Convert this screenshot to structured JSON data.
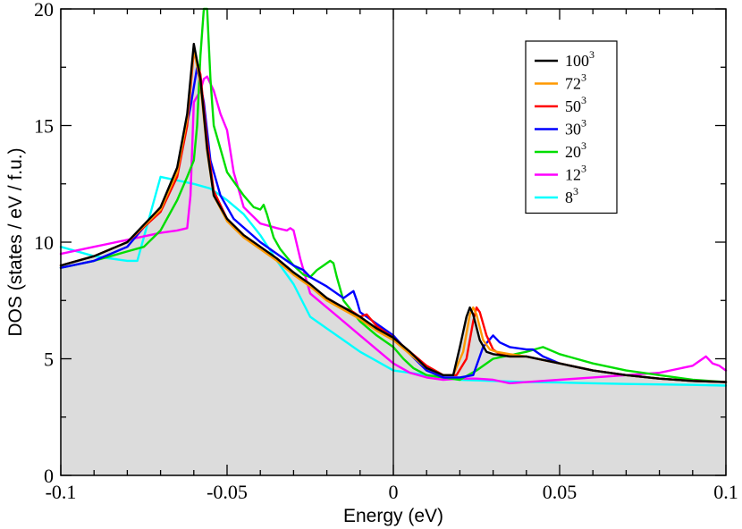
{
  "chart_data": {
    "type": "line",
    "title": "",
    "xlabel": "Energy (eV)",
    "ylabel": "DOS (states / eV / f.u.)",
    "xlim": [
      -0.1,
      0.1
    ],
    "ylim": [
      0,
      20
    ],
    "x_ticks": [
      "-0.1",
      "-0.05",
      "0",
      "0.05",
      "0.1"
    ],
    "y_ticks": [
      "0",
      "5",
      "10",
      "15",
      "20"
    ],
    "fermi_line_x": 0,
    "legend_position": "top-right",
    "shaded_reference_series": "100^3",
    "series": [
      {
        "name": "100^3",
        "label_base": "100",
        "label_exp": "3",
        "color": "#000000",
        "x": [
          -0.1,
          -0.09,
          -0.08,
          -0.07,
          -0.065,
          -0.062,
          -0.06,
          -0.058,
          -0.056,
          -0.054,
          -0.05,
          -0.045,
          -0.04,
          -0.035,
          -0.03,
          -0.025,
          -0.02,
          -0.015,
          -0.01,
          -0.005,
          0,
          0.005,
          0.01,
          0.015,
          0.018,
          0.02,
          0.022,
          0.023,
          0.024,
          0.026,
          0.028,
          0.03,
          0.035,
          0.04,
          0.05,
          0.06,
          0.07,
          0.08,
          0.09,
          0.1
        ],
        "y": [
          9,
          9.4,
          10,
          11.5,
          13.2,
          15.5,
          18.5,
          17,
          14,
          12,
          11,
          10.3,
          9.8,
          9.3,
          8.7,
          8.2,
          7.6,
          7.2,
          6.8,
          6.3,
          5.9,
          5.3,
          4.6,
          4.3,
          4.3,
          5.5,
          6.8,
          7.2,
          6.9,
          5.8,
          5.3,
          5.2,
          5.1,
          5.1,
          4.8,
          4.5,
          4.3,
          4.15,
          4.05,
          4
        ]
      },
      {
        "name": "72^3",
        "label_base": "72",
        "label_exp": "3",
        "color": "#ff9900",
        "x": [
          -0.1,
          -0.09,
          -0.08,
          -0.07,
          -0.065,
          -0.062,
          -0.06,
          -0.058,
          -0.056,
          -0.054,
          -0.05,
          -0.045,
          -0.04,
          -0.035,
          -0.03,
          -0.025,
          -0.02,
          -0.015,
          -0.01,
          -0.005,
          0,
          0.005,
          0.01,
          0.015,
          0.018,
          0.021,
          0.023,
          0.024,
          0.025,
          0.027,
          0.029,
          0.031,
          0.035,
          0.04,
          0.05,
          0.06,
          0.07,
          0.08,
          0.09,
          0.1
        ],
        "y": [
          9,
          9.4,
          10,
          11.4,
          13,
          15.3,
          18.3,
          16.8,
          13.9,
          12,
          10.9,
          10.2,
          9.7,
          9.2,
          8.6,
          8.1,
          7.5,
          7.1,
          6.7,
          6.2,
          5.8,
          5.2,
          4.6,
          4.3,
          4.3,
          5.3,
          6.9,
          7.2,
          6.9,
          5.8,
          5.4,
          5.3,
          5.2,
          5.1,
          4.8,
          4.5,
          4.3,
          4.15,
          4.05,
          4
        ]
      },
      {
        "name": "50^3",
        "label_base": "50",
        "label_exp": "3",
        "color": "#ff0000",
        "x": [
          -0.1,
          -0.09,
          -0.08,
          -0.07,
          -0.065,
          -0.062,
          -0.06,
          -0.058,
          -0.056,
          -0.054,
          -0.05,
          -0.045,
          -0.04,
          -0.035,
          -0.03,
          -0.025,
          -0.02,
          -0.015,
          -0.012,
          -0.01,
          -0.008,
          -0.005,
          0,
          0.005,
          0.01,
          0.015,
          0.019,
          0.022,
          0.024,
          0.025,
          0.026,
          0.028,
          0.03,
          0.032,
          0.035,
          0.04,
          0.05,
          0.06,
          0.07,
          0.08,
          0.09,
          0.1
        ],
        "y": [
          9,
          9.4,
          10,
          11.3,
          12.8,
          15,
          18.2,
          17.2,
          14.3,
          12.2,
          11,
          10.3,
          9.8,
          9.3,
          8.7,
          8.1,
          7.6,
          7.2,
          7,
          6.8,
          6.9,
          6.4,
          5.9,
          5.3,
          4.7,
          4.3,
          4.3,
          5,
          6.6,
          7.2,
          7,
          6,
          5.4,
          5.2,
          5.1,
          5.1,
          4.8,
          4.5,
          4.3,
          4.15,
          4.05,
          4
        ]
      },
      {
        "name": "30^3",
        "label_base": "30",
        "label_exp": "3",
        "color": "#0000ff",
        "x": [
          -0.1,
          -0.09,
          -0.08,
          -0.07,
          -0.065,
          -0.061,
          -0.059,
          -0.057,
          -0.055,
          -0.052,
          -0.048,
          -0.044,
          -0.04,
          -0.035,
          -0.03,
          -0.027,
          -0.025,
          -0.02,
          -0.015,
          -0.013,
          -0.012,
          -0.011,
          -0.01,
          -0.005,
          0,
          0.005,
          0.01,
          0.015,
          0.02,
          0.024,
          0.027,
          0.03,
          0.032,
          0.035,
          0.04,
          0.042,
          0.045,
          0.05,
          0.06,
          0.07,
          0.08,
          0.09,
          0.1
        ],
        "y": [
          8.9,
          9.2,
          9.8,
          11.5,
          13,
          15.8,
          17.5,
          16,
          13.5,
          12,
          11,
          10.5,
          10,
          9.5,
          9,
          8.8,
          8.5,
          8.1,
          7.6,
          7.8,
          7.9,
          7.5,
          7,
          6.5,
          6,
          5.2,
          4.5,
          4.2,
          4.2,
          4.3,
          5.5,
          6,
          5.7,
          5.5,
          5.4,
          5.4,
          5.1,
          4.8,
          4.5,
          4.3,
          4.15,
          4.05,
          4
        ]
      },
      {
        "name": "20^3",
        "label_base": "20",
        "label_exp": "3",
        "color": "#00dd00",
        "x": [
          -0.1,
          -0.09,
          -0.08,
          -0.075,
          -0.07,
          -0.065,
          -0.062,
          -0.06,
          -0.059,
          -0.058,
          -0.057,
          -0.056,
          -0.055,
          -0.054,
          -0.052,
          -0.05,
          -0.045,
          -0.042,
          -0.04,
          -0.039,
          -0.038,
          -0.036,
          -0.034,
          -0.03,
          -0.027,
          -0.025,
          -0.023,
          -0.021,
          -0.019,
          -0.018,
          -0.017,
          -0.015,
          -0.01,
          -0.005,
          0,
          0.003,
          0.006,
          0.01,
          0.02,
          0.025,
          0.03,
          0.04,
          0.045,
          0.05,
          0.06,
          0.07,
          0.08,
          0.09,
          0.1
        ],
        "y": [
          8.9,
          9.2,
          9.6,
          9.8,
          10.5,
          11.8,
          12.8,
          13.5,
          15,
          18,
          20,
          20,
          17,
          15,
          14,
          13,
          12,
          11.5,
          11.4,
          11.6,
          11.2,
          10.2,
          9.7,
          9,
          8.6,
          8.5,
          8.8,
          9,
          9.2,
          9.1,
          8.5,
          7.5,
          6.6,
          6,
          5.5,
          5,
          4.6,
          4.3,
          4.1,
          4.5,
          5,
          5.3,
          5.5,
          5.2,
          4.8,
          4.5,
          4.3,
          4.1,
          4
        ]
      },
      {
        "name": "12^3",
        "label_base": "12",
        "label_exp": "3",
        "color": "#ff00ff",
        "x": [
          -0.1,
          -0.09,
          -0.08,
          -0.07,
          -0.065,
          -0.062,
          -0.061,
          -0.06,
          -0.058,
          -0.057,
          -0.056,
          -0.054,
          -0.052,
          -0.05,
          -0.048,
          -0.045,
          -0.04,
          -0.035,
          -0.032,
          -0.031,
          -0.03,
          -0.028,
          -0.025,
          -0.02,
          -0.015,
          -0.01,
          -0.005,
          0,
          0.005,
          0.01,
          0.015,
          0.02,
          0.025,
          0.03,
          0.035,
          0.04,
          0.05,
          0.06,
          0.07,
          0.08,
          0.09,
          0.092,
          0.093,
          0.094,
          0.096,
          0.098,
          0.1
        ],
        "y": [
          9.5,
          9.8,
          10.1,
          10.4,
          10.5,
          10.6,
          12,
          16,
          16.5,
          17,
          17.1,
          16.5,
          15.5,
          14.8,
          13,
          11.5,
          10.8,
          10.6,
          10.5,
          10.6,
          10.5,
          9.3,
          7.8,
          7.2,
          6.6,
          6,
          5.4,
          4.8,
          4.4,
          4.2,
          4.1,
          4.15,
          4.15,
          4.1,
          3.95,
          4.0,
          4.1,
          4.2,
          4.3,
          4.4,
          4.7,
          4.9,
          5.0,
          5.1,
          4.8,
          4.7,
          4.5
        ]
      },
      {
        "name": "8^3",
        "label_base": "8",
        "label_exp": "3",
        "color": "#00ffff",
        "x": [
          -0.1,
          -0.09,
          -0.08,
          -0.077,
          -0.07,
          -0.06,
          -0.055,
          -0.05,
          -0.045,
          -0.04,
          -0.035,
          -0.03,
          -0.025,
          -0.02,
          -0.015,
          -0.01,
          -0.005,
          0,
          0.005,
          0.01,
          0.02,
          0.03,
          0.04,
          0.05,
          0.06,
          0.07,
          0.08,
          0.09,
          0.1
        ],
        "y": [
          9.8,
          9.4,
          9.2,
          9.2,
          12.8,
          12.5,
          12.3,
          11.8,
          11.2,
          10.3,
          9.2,
          8.2,
          6.8,
          6.3,
          5.8,
          5.3,
          4.9,
          4.5,
          4.4,
          4.3,
          4.1,
          4.05,
          4.0,
          3.98,
          3.95,
          3.92,
          3.9,
          3.88,
          3.85
        ]
      }
    ]
  }
}
